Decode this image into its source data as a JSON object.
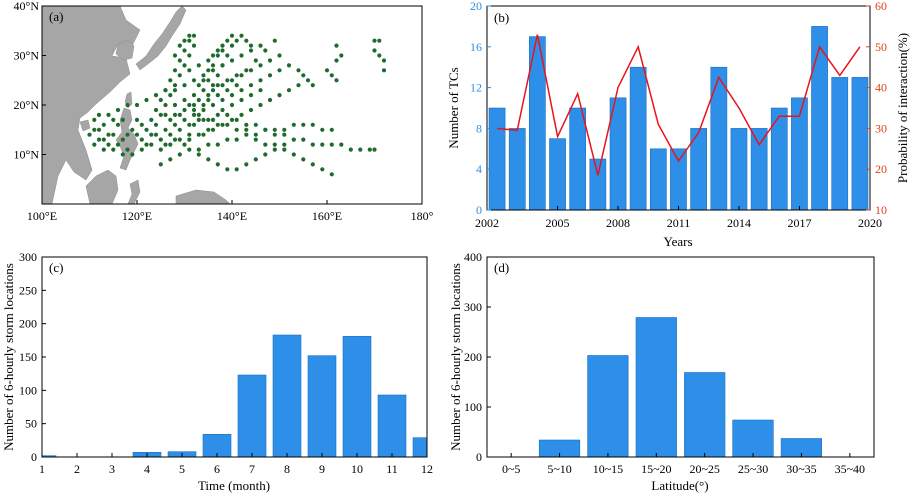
{
  "chart_data": [
    {
      "id": "a",
      "type": "scatter",
      "panel_label": "(a)",
      "title": "",
      "xlabel": "",
      "ylabel": "",
      "xlim": [
        100,
        180
      ],
      "ylim": [
        0,
        40
      ],
      "x_ticks": [
        100,
        120,
        140,
        160,
        180
      ],
      "x_tick_labels": [
        "100°E",
        "120°E",
        "140°E",
        "160°E",
        "180°"
      ],
      "y_ticks": [
        10,
        20,
        30,
        40
      ],
      "y_tick_labels": [
        "10°N",
        "20°N",
        "30°N",
        "40°N"
      ],
      "point_color": "#1f6b2e",
      "land_color": "#a6a6a6",
      "points": [
        [
          111,
          17
        ],
        [
          112,
          15
        ],
        [
          113,
          13
        ],
        [
          114,
          12
        ],
        [
          115,
          14
        ],
        [
          116,
          16
        ],
        [
          117,
          13
        ],
        [
          118,
          11
        ],
        [
          119,
          15
        ],
        [
          120,
          17
        ],
        [
          121,
          13
        ],
        [
          122,
          15
        ],
        [
          123,
          17
        ],
        [
          124,
          19
        ],
        [
          125,
          21
        ],
        [
          126,
          23
        ],
        [
          127,
          25
        ],
        [
          128,
          27
        ],
        [
          129,
          29
        ],
        [
          130,
          31
        ],
        [
          131,
          33
        ],
        [
          132,
          34
        ],
        [
          111,
          12
        ],
        [
          113,
          11
        ],
        [
          115,
          11
        ],
        [
          117,
          10
        ],
        [
          119,
          10
        ],
        [
          121,
          11
        ],
        [
          123,
          12
        ],
        [
          125,
          13
        ],
        [
          127,
          14
        ],
        [
          129,
          15
        ],
        [
          131,
          16
        ],
        [
          133,
          17
        ],
        [
          135,
          17
        ],
        [
          137,
          18
        ],
        [
          139,
          18
        ],
        [
          141,
          17
        ],
        [
          143,
          16
        ],
        [
          145,
          16
        ],
        [
          147,
          15
        ],
        [
          149,
          14
        ],
        [
          151,
          14
        ],
        [
          153,
          13
        ],
        [
          155,
          13
        ],
        [
          157,
          12
        ],
        [
          159,
          12
        ],
        [
          161,
          12
        ],
        [
          163,
          12
        ],
        [
          165,
          11
        ],
        [
          167,
          11
        ],
        [
          169,
          11
        ],
        [
          170,
          11
        ],
        [
          112,
          18
        ],
        [
          114,
          18
        ],
        [
          116,
          19
        ],
        [
          118,
          20
        ],
        [
          120,
          20
        ],
        [
          122,
          21
        ],
        [
          124,
          22
        ],
        [
          126,
          23
        ],
        [
          128,
          23
        ],
        [
          130,
          24
        ],
        [
          132,
          25
        ],
        [
          134,
          26
        ],
        [
          136,
          27
        ],
        [
          138,
          28
        ],
        [
          140,
          29
        ],
        [
          142,
          30
        ],
        [
          144,
          31
        ],
        [
          146,
          32
        ],
        [
          125,
          8
        ],
        [
          127,
          9
        ],
        [
          129,
          10
        ],
        [
          131,
          11
        ],
        [
          133,
          11
        ],
        [
          135,
          12
        ],
        [
          137,
          12
        ],
        [
          139,
          13
        ],
        [
          141,
          13
        ],
        [
          143,
          14
        ],
        [
          145,
          14
        ],
        [
          147,
          15
        ],
        [
          149,
          15
        ],
        [
          151,
          15
        ],
        [
          153,
          16
        ],
        [
          155,
          16
        ],
        [
          157,
          16
        ],
        [
          159,
          15
        ],
        [
          161,
          15
        ],
        [
          126,
          15
        ],
        [
          128,
          16
        ],
        [
          130,
          17
        ],
        [
          132,
          18
        ],
        [
          134,
          19
        ],
        [
          136,
          20
        ],
        [
          138,
          21
        ],
        [
          140,
          22
        ],
        [
          142,
          23
        ],
        [
          144,
          24
        ],
        [
          146,
          25
        ],
        [
          148,
          26
        ],
        [
          150,
          27
        ],
        [
          124,
          16
        ],
        [
          125,
          18
        ],
        [
          126,
          20
        ],
        [
          127,
          22
        ],
        [
          128,
          24
        ],
        [
          129,
          26
        ],
        [
          130,
          28
        ],
        [
          131,
          30
        ],
        [
          132,
          32
        ],
        [
          130,
          12
        ],
        [
          131,
          14
        ],
        [
          132,
          16
        ],
        [
          133,
          18
        ],
        [
          134,
          20
        ],
        [
          135,
          22
        ],
        [
          136,
          24
        ],
        [
          137,
          26
        ],
        [
          138,
          28
        ],
        [
          139,
          30
        ],
        [
          140,
          32
        ],
        [
          141,
          33
        ],
        [
          133,
          10
        ],
        [
          135,
          9
        ],
        [
          137,
          8
        ],
        [
          139,
          7
        ],
        [
          141,
          7
        ],
        [
          143,
          8
        ],
        [
          145,
          9
        ],
        [
          147,
          10
        ],
        [
          149,
          11
        ],
        [
          151,
          12
        ],
        [
          134,
          14
        ],
        [
          136,
          15
        ],
        [
          138,
          16
        ],
        [
          140,
          17
        ],
        [
          142,
          18
        ],
        [
          144,
          19
        ],
        [
          146,
          20
        ],
        [
          148,
          21
        ],
        [
          150,
          22
        ],
        [
          152,
          23
        ],
        [
          154,
          24
        ],
        [
          128,
          20
        ],
        [
          130,
          21
        ],
        [
          132,
          22
        ],
        [
          134,
          23
        ],
        [
          136,
          23
        ],
        [
          138,
          24
        ],
        [
          140,
          25
        ],
        [
          142,
          26
        ],
        [
          144,
          27
        ],
        [
          146,
          28
        ],
        [
          148,
          29
        ],
        [
          150,
          30
        ],
        [
          126,
          18
        ],
        [
          128,
          18
        ],
        [
          130,
          19
        ],
        [
          132,
          19
        ],
        [
          134,
          17
        ],
        [
          136,
          17
        ],
        [
          138,
          19
        ],
        [
          140,
          20
        ],
        [
          142,
          21
        ],
        [
          144,
          22
        ],
        [
          146,
          23
        ],
        [
          127,
          17
        ],
        [
          129,
          18
        ],
        [
          131,
          20
        ],
        [
          133,
          21
        ],
        [
          135,
          21
        ],
        [
          137,
          22
        ],
        [
          139,
          23
        ],
        [
          141,
          24
        ],
        [
          129,
          13
        ],
        [
          131,
          13
        ],
        [
          133,
          14
        ],
        [
          135,
          15
        ],
        [
          137,
          16
        ],
        [
          139,
          16
        ],
        [
          141,
          15
        ],
        [
          143,
          15
        ],
        [
          145,
          13
        ],
        [
          147,
          12
        ],
        [
          149,
          12
        ],
        [
          151,
          11
        ],
        [
          153,
          10
        ],
        [
          155,
          9
        ],
        [
          157,
          8
        ],
        [
          159,
          7
        ],
        [
          161,
          6
        ],
        [
          152,
          28
        ],
        [
          154,
          27
        ],
        [
          155,
          26
        ],
        [
          156,
          25
        ],
        [
          157,
          24
        ],
        [
          160,
          27
        ],
        [
          161,
          26
        ],
        [
          162,
          25
        ],
        [
          162,
          32
        ],
        [
          163,
          30
        ],
        [
          162,
          29
        ],
        [
          170,
          33
        ],
        [
          170,
          31
        ],
        [
          171,
          30
        ],
        [
          172,
          29
        ],
        [
          172,
          27
        ],
        [
          171,
          33
        ],
        [
          120,
          14
        ],
        [
          121,
          16
        ],
        [
          122,
          12
        ],
        [
          123,
          14
        ],
        [
          124,
          14
        ],
        [
          125,
          11
        ],
        [
          126,
          12
        ],
        [
          127,
          12
        ],
        [
          128,
          13
        ],
        [
          113,
          16
        ],
        [
          115,
          17
        ],
        [
          117,
          17
        ],
        [
          118,
          14
        ],
        [
          116,
          12
        ],
        [
          114,
          14
        ],
        [
          112,
          13
        ],
        [
          110,
          14
        ],
        [
          111,
          15
        ],
        [
          135,
          25
        ],
        [
          137,
          24
        ],
        [
          139,
          25
        ],
        [
          141,
          26
        ],
        [
          143,
          27
        ],
        [
          145,
          29
        ],
        [
          147,
          31
        ],
        [
          149,
          33
        ],
        [
          136,
          30
        ],
        [
          137,
          31
        ],
        [
          138,
          32
        ],
        [
          139,
          33
        ],
        [
          140,
          34
        ],
        [
          142,
          34
        ],
        [
          143,
          33
        ],
        [
          144,
          32
        ],
        [
          128,
          30
        ],
        [
          129,
          32
        ],
        [
          130,
          33
        ],
        [
          131,
          34
        ],
        [
          131,
          27
        ],
        [
          133,
          28
        ],
        [
          135,
          29
        ],
        [
          137,
          30
        ],
        [
          138,
          31
        ],
        [
          132,
          20
        ],
        [
          133,
          24
        ],
        [
          134,
          25
        ],
        [
          135,
          27
        ],
        [
          136,
          28
        ]
      ]
    },
    {
      "id": "b",
      "type": "bar",
      "panel_label": "(b)",
      "title": "",
      "xlabel": "Years",
      "ylabel": "Number of TCs",
      "ylabel_right": "Probability of interaction(%)",
      "x": [
        2002,
        2003,
        2004,
        2005,
        2006,
        2007,
        2008,
        2009,
        2010,
        2011,
        2012,
        2013,
        2014,
        2015,
        2016,
        2017,
        2018,
        2019,
        2020
      ],
      "x_tick_labels": [
        "2002",
        "2005",
        "2008",
        "2011",
        "2014",
        "2017",
        "2020"
      ],
      "x_tick_values": [
        2002,
        2005,
        2008,
        2011,
        2014,
        2017,
        2020
      ],
      "ylim": [
        0,
        20
      ],
      "y_ticks": [
        0,
        4,
        8,
        12,
        16,
        20
      ],
      "y_tick_labels": [
        "0",
        "4",
        "8",
        "12",
        "16",
        "20"
      ],
      "ylim_right": [
        10,
        60
      ],
      "y_ticks_right": [
        10,
        20,
        30,
        40,
        50,
        60
      ],
      "y_tick_labels_right": [
        "10",
        "20",
        "30",
        "40",
        "50",
        "60"
      ],
      "bar_color": "#2e8fe8",
      "right_axis_color": "#e0401a",
      "series": [
        {
          "name": "Number of TCs",
          "type": "bar",
          "values": [
            10,
            8,
            17,
            7,
            10,
            5,
            11,
            14,
            6,
            6,
            8,
            14,
            8,
            8,
            10,
            11,
            18,
            13,
            13
          ]
        },
        {
          "name": "Probability of interaction(%)",
          "type": "line",
          "color": "#e8141a",
          "values": [
            30,
            29.5,
            53,
            28,
            38.5,
            18.5,
            40,
            50,
            31,
            22,
            29,
            42.5,
            35,
            26,
            33,
            33,
            50,
            43,
            50
          ]
        }
      ]
    },
    {
      "id": "c",
      "type": "bar",
      "panel_label": "(c)",
      "title": "",
      "xlabel": "Time (month)",
      "ylabel": "Number of 6-hourly storm locations",
      "categories": [
        "1",
        "2",
        "3",
        "4",
        "5",
        "6",
        "7",
        "8",
        "9",
        "10",
        "11",
        "12"
      ],
      "values": [
        2,
        0,
        0,
        7,
        8,
        34,
        123,
        183,
        152,
        181,
        93,
        29
      ],
      "ylim": [
        0,
        300
      ],
      "y_ticks": [
        0,
        50,
        100,
        150,
        200,
        250,
        300
      ],
      "y_tick_labels": [
        "0",
        "50",
        "100",
        "150",
        "200",
        "250",
        "300"
      ],
      "bar_color": "#2e8fe8"
    },
    {
      "id": "d",
      "type": "bar",
      "panel_label": "(d)",
      "title": "",
      "xlabel": "Latitude(°)",
      "ylabel": "Number of 6-hourly storm locations",
      "categories": [
        "0~5",
        "5~10",
        "10~15",
        "15~20",
        "20~25",
        "25~30",
        "30~35",
        "35~40"
      ],
      "values": [
        0,
        34,
        203,
        279,
        169,
        74,
        37,
        0
      ],
      "ylim": [
        0,
        400
      ],
      "y_ticks": [
        0,
        100,
        200,
        300,
        400
      ],
      "y_tick_labels": [
        "0",
        "100",
        "200",
        "300",
        "400"
      ],
      "bar_color": "#2e8fe8"
    }
  ]
}
